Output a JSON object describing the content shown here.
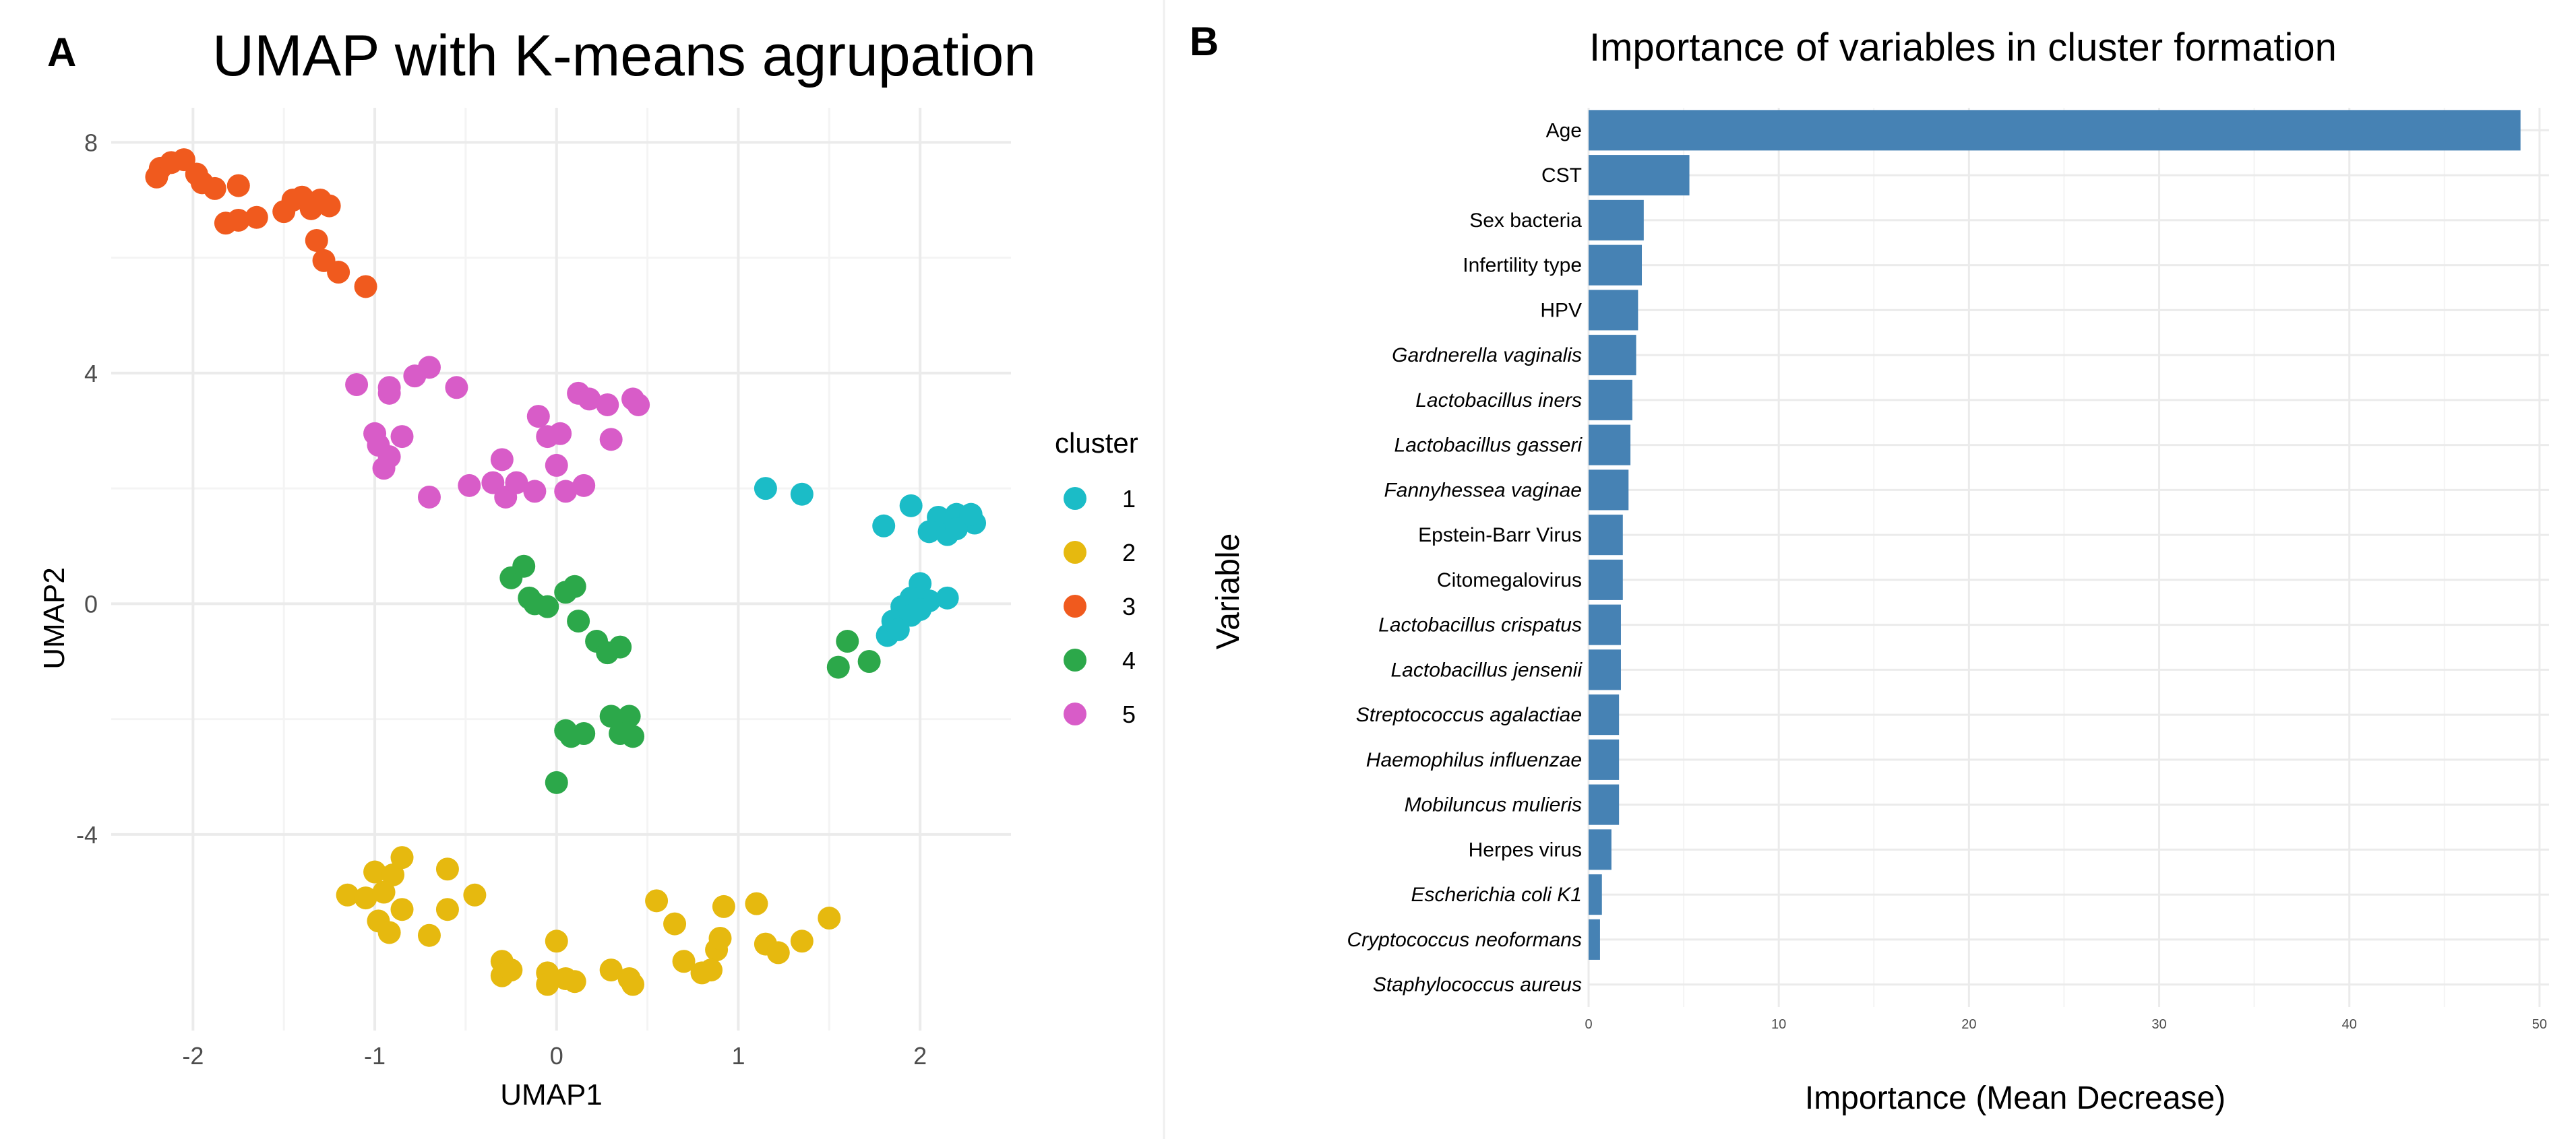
{
  "panels": {
    "a": {
      "label": "A"
    },
    "b": {
      "label": "B"
    }
  },
  "chart_data": [
    {
      "type": "scatter",
      "title": "UMAP with K-means agrupation",
      "xlabel": "UMAP1",
      "ylabel": "UMAP2",
      "xlim": [
        -2.45,
        2.5
      ],
      "ylim": [
        -7.4,
        8.6
      ],
      "xticks": [
        -2,
        -1,
        0,
        1,
        2
      ],
      "xtick_labels": [
        "-2",
        "-1",
        "0",
        "1",
        "2"
      ],
      "yticks": [
        -4,
        0,
        4,
        8
      ],
      "ytick_labels": [
        "-4",
        "0",
        "4",
        "8"
      ],
      "grid": true,
      "legend": {
        "title": "cluster",
        "position": "right"
      },
      "series": [
        {
          "name": "1",
          "color": "#1bbcc7",
          "points": [
            [
              1.15,
              2.0
            ],
            [
              1.35,
              1.9
            ],
            [
              1.8,
              1.35
            ],
            [
              1.95,
              1.7
            ],
            [
              2.1,
              1.5
            ],
            [
              2.2,
              1.55
            ],
            [
              2.3,
              1.4
            ],
            [
              2.05,
              1.25
            ],
            [
              2.15,
              1.2
            ],
            [
              2.2,
              1.3
            ],
            [
              2.28,
              1.55
            ],
            [
              2.0,
              0.35
            ],
            [
              1.95,
              0.1
            ],
            [
              2.05,
              0.05
            ],
            [
              2.15,
              0.1
            ],
            [
              1.9,
              -0.05
            ],
            [
              1.85,
              -0.3
            ],
            [
              1.95,
              -0.2
            ],
            [
              1.82,
              -0.55
            ],
            [
              1.88,
              -0.45
            ],
            [
              2.0,
              -0.1
            ]
          ]
        },
        {
          "name": "2",
          "color": "#e6b90f",
          "points": [
            [
              -1.15,
              -5.05
            ],
            [
              -1.05,
              -5.1
            ],
            [
              -1.0,
              -4.65
            ],
            [
              -0.9,
              -4.7
            ],
            [
              -0.85,
              -4.4
            ],
            [
              -0.95,
              -5.0
            ],
            [
              -0.85,
              -5.3
            ],
            [
              -0.98,
              -5.5
            ],
            [
              -0.92,
              -5.7
            ],
            [
              -0.7,
              -5.75
            ],
            [
              -0.6,
              -5.3
            ],
            [
              -0.6,
              -4.6
            ],
            [
              -0.45,
              -5.05
            ],
            [
              -0.3,
              -6.2
            ],
            [
              -0.3,
              -6.45
            ],
            [
              -0.25,
              -6.35
            ],
            [
              -0.05,
              -6.4
            ],
            [
              0.0,
              -5.85
            ],
            [
              0.05,
              -6.5
            ],
            [
              0.1,
              -6.55
            ],
            [
              -0.05,
              -6.6
            ],
            [
              0.3,
              -6.35
            ],
            [
              0.4,
              -6.5
            ],
            [
              0.42,
              -6.6
            ],
            [
              0.55,
              -5.15
            ],
            [
              0.65,
              -5.55
            ],
            [
              0.7,
              -6.2
            ],
            [
              0.8,
              -6.4
            ],
            [
              0.88,
              -6.0
            ],
            [
              0.85,
              -6.35
            ],
            [
              0.9,
              -5.8
            ],
            [
              0.92,
              -5.25
            ],
            [
              1.1,
              -5.2
            ],
            [
              1.15,
              -5.9
            ],
            [
              1.22,
              -6.05
            ],
            [
              1.35,
              -5.85
            ],
            [
              1.5,
              -5.45
            ]
          ]
        },
        {
          "name": "3",
          "color": "#f05a1e",
          "points": [
            [
              -2.2,
              7.4
            ],
            [
              -2.18,
              7.55
            ],
            [
              -2.12,
              7.65
            ],
            [
              -2.05,
              7.7
            ],
            [
              -1.98,
              7.45
            ],
            [
              -1.95,
              7.3
            ],
            [
              -1.88,
              7.2
            ],
            [
              -1.75,
              7.25
            ],
            [
              -1.82,
              6.6
            ],
            [
              -1.75,
              6.65
            ],
            [
              -1.65,
              6.7
            ],
            [
              -1.5,
              6.8
            ],
            [
              -1.45,
              7.0
            ],
            [
              -1.4,
              7.05
            ],
            [
              -1.35,
              6.95
            ],
            [
              -1.3,
              7.0
            ],
            [
              -1.25,
              6.9
            ],
            [
              -1.35,
              6.85
            ],
            [
              -1.32,
              6.3
            ],
            [
              -1.28,
              5.95
            ],
            [
              -1.2,
              5.75
            ],
            [
              -1.05,
              5.5
            ]
          ]
        },
        {
          "name": "4",
          "color": "#2ca84a",
          "points": [
            [
              -0.25,
              0.45
            ],
            [
              -0.18,
              0.65
            ],
            [
              -0.15,
              0.1
            ],
            [
              -0.12,
              0.0
            ],
            [
              -0.05,
              -0.05
            ],
            [
              0.05,
              0.2
            ],
            [
              0.1,
              0.3
            ],
            [
              0.12,
              -0.3
            ],
            [
              0.22,
              -0.65
            ],
            [
              0.28,
              -0.85
            ],
            [
              0.35,
              -0.75
            ],
            [
              0.3,
              -1.95
            ],
            [
              0.4,
              -1.95
            ],
            [
              0.42,
              -2.3
            ],
            [
              0.35,
              -2.25
            ],
            [
              0.15,
              -2.25
            ],
            [
              0.08,
              -2.3
            ],
            [
              0.05,
              -2.2
            ],
            [
              0.0,
              -3.1
            ],
            [
              1.55,
              -1.1
            ],
            [
              1.6,
              -0.65
            ],
            [
              1.72,
              -1.0
            ]
          ]
        },
        {
          "name": "5",
          "color": "#d85cc8",
          "points": [
            [
              -1.1,
              3.8
            ],
            [
              -0.92,
              3.65
            ],
            [
              -0.92,
              3.75
            ],
            [
              -0.78,
              3.95
            ],
            [
              -0.7,
              4.1
            ],
            [
              -0.55,
              3.75
            ],
            [
              -1.0,
              2.95
            ],
            [
              -0.98,
              2.75
            ],
            [
              -0.92,
              2.55
            ],
            [
              -0.95,
              2.35
            ],
            [
              -0.85,
              2.9
            ],
            [
              -0.7,
              1.85
            ],
            [
              -0.48,
              2.05
            ],
            [
              -0.35,
              2.1
            ],
            [
              -0.3,
              2.5
            ],
            [
              -0.28,
              1.85
            ],
            [
              -0.22,
              2.1
            ],
            [
              -0.12,
              1.95
            ],
            [
              -0.1,
              3.25
            ],
            [
              -0.05,
              2.9
            ],
            [
              0.02,
              2.95
            ],
            [
              0.0,
              2.4
            ],
            [
              0.05,
              1.95
            ],
            [
              0.12,
              3.65
            ],
            [
              0.15,
              2.05
            ],
            [
              0.18,
              3.55
            ],
            [
              0.28,
              3.45
            ],
            [
              0.3,
              2.85
            ],
            [
              0.42,
              3.55
            ],
            [
              0.45,
              3.45
            ]
          ]
        }
      ]
    },
    {
      "type": "bar",
      "orientation": "horizontal",
      "title": "Importance of variables in cluster formation",
      "xlabel": "Importance (Mean Decrease)",
      "ylabel": "Variable",
      "xlim": [
        0,
        50.5
      ],
      "xticks": [
        0,
        10,
        20,
        30,
        40,
        50
      ],
      "xtick_labels": [
        "0",
        "10",
        "20",
        "30",
        "40",
        "50"
      ],
      "grid": true,
      "bar_color": "#4682b4",
      "categories": [
        {
          "label": "Age",
          "italic": false
        },
        {
          "label": "CST",
          "italic": false
        },
        {
          "label": "Sex bacteria",
          "italic": false
        },
        {
          "label": "Infertility type",
          "italic": false
        },
        {
          "label": "HPV",
          "italic": false
        },
        {
          "label": "Gardnerella vaginalis",
          "italic": true
        },
        {
          "label": "Lactobacillus iners",
          "italic": true
        },
        {
          "label": "Lactobacillus gasseri",
          "italic": true
        },
        {
          "label": "Fannyhessea vaginae",
          "italic": true
        },
        {
          "label": "Epstein-Barr Virus",
          "italic": false
        },
        {
          "label": "Citomegalovirus",
          "italic": false
        },
        {
          "label": "Lactobacillus crispatus",
          "italic": true
        },
        {
          "label": "Lactobacillus jensenii",
          "italic": true
        },
        {
          "label": "Streptococcus agalactiae",
          "italic": true
        },
        {
          "label": "Haemophilus influenzae",
          "italic": true
        },
        {
          "label": "Mobiluncus mulieris",
          "italic": true
        },
        {
          "label": "Herpes virus",
          "italic": false
        },
        {
          "label": "Escherichia coli K1",
          "italic": true
        },
        {
          "label": "Cryptococcus neoformans",
          "italic": true
        },
        {
          "label": "Staphylococcus aureus",
          "italic": true
        }
      ],
      "values": [
        49.0,
        5.3,
        2.9,
        2.8,
        2.6,
        2.5,
        2.3,
        2.2,
        2.1,
        1.8,
        1.8,
        1.7,
        1.7,
        1.6,
        1.6,
        1.6,
        1.2,
        0.7,
        0.6,
        0.0
      ]
    }
  ]
}
